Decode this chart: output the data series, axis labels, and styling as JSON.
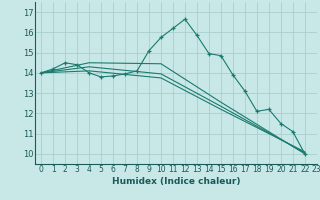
{
  "xlabel": "Humidex (Indice chaleur)",
  "bg_color": "#c8e8e8",
  "grid_color": "#aacece",
  "line_color": "#1a7a6e",
  "series": [
    [
      0,
      14.0
    ],
    [
      1,
      14.2
    ],
    [
      2,
      14.5
    ],
    [
      3,
      14.4
    ],
    [
      4,
      14.0
    ],
    [
      5,
      13.8
    ],
    [
      6,
      13.85
    ],
    [
      7,
      13.95
    ],
    [
      8,
      14.1
    ],
    [
      9,
      15.1
    ],
    [
      10,
      15.75
    ],
    [
      11,
      16.2
    ],
    [
      12,
      16.65
    ],
    [
      13,
      15.85
    ],
    [
      14,
      14.95
    ],
    [
      15,
      14.85
    ],
    [
      16,
      13.9
    ],
    [
      17,
      13.1
    ],
    [
      18,
      12.1
    ],
    [
      19,
      12.2
    ],
    [
      20,
      11.5
    ],
    [
      21,
      11.1
    ],
    [
      22,
      10.0
    ]
  ],
  "series2": [
    [
      0,
      14.0
    ],
    [
      4,
      14.5
    ],
    [
      10,
      14.45
    ],
    [
      15,
      12.55
    ],
    [
      22,
      10.0
    ]
  ],
  "series3": [
    [
      0,
      14.0
    ],
    [
      4,
      14.3
    ],
    [
      10,
      13.95
    ],
    [
      15,
      12.35
    ],
    [
      22,
      10.05
    ]
  ],
  "series4": [
    [
      0,
      14.0
    ],
    [
      4,
      14.1
    ],
    [
      10,
      13.75
    ],
    [
      15,
      12.2
    ],
    [
      22,
      10.1
    ]
  ],
  "ylim": [
    9.5,
    17.5
  ],
  "xlim": [
    -0.5,
    23.0
  ],
  "yticks": [
    10,
    11,
    12,
    13,
    14,
    15,
    16,
    17
  ],
  "xticks": [
    0,
    1,
    2,
    3,
    4,
    5,
    6,
    7,
    8,
    9,
    10,
    11,
    12,
    13,
    14,
    15,
    16,
    17,
    18,
    19,
    20,
    21,
    22,
    23
  ]
}
